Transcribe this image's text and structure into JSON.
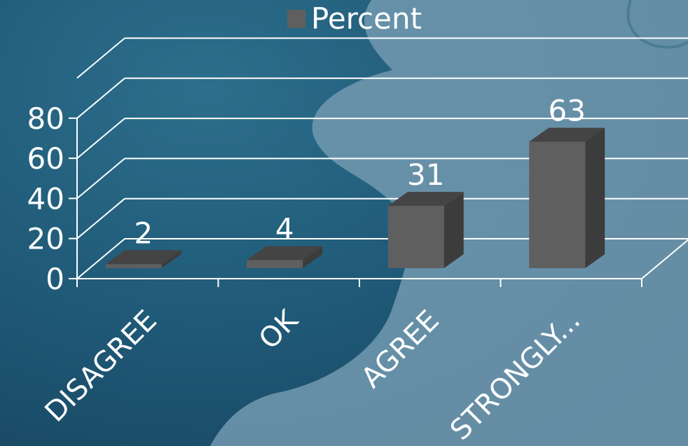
{
  "chart_data": {
    "type": "bar",
    "categories": [
      "DISAGREE",
      "OK",
      "AGREE",
      "STRONGLY..."
    ],
    "series": [
      {
        "name": "Percent",
        "values": [
          2,
          4,
          31,
          63
        ]
      }
    ],
    "data_labels": [
      "2",
      "4",
      "31",
      "63"
    ],
    "y_ticks": [
      "0",
      "20",
      "40",
      "60",
      "80"
    ],
    "ylim": [
      0,
      100
    ],
    "grid": true,
    "legend_position": "top",
    "style": "3d"
  },
  "colors": {
    "bar_front": "#5f5f5f",
    "bar_top": "#444444",
    "bar_side": "#3c3c3c",
    "gridline": "#ffffff",
    "text": "#ffffff",
    "background": "#1f5a78",
    "puzzle_piece": "#6f97ae"
  }
}
